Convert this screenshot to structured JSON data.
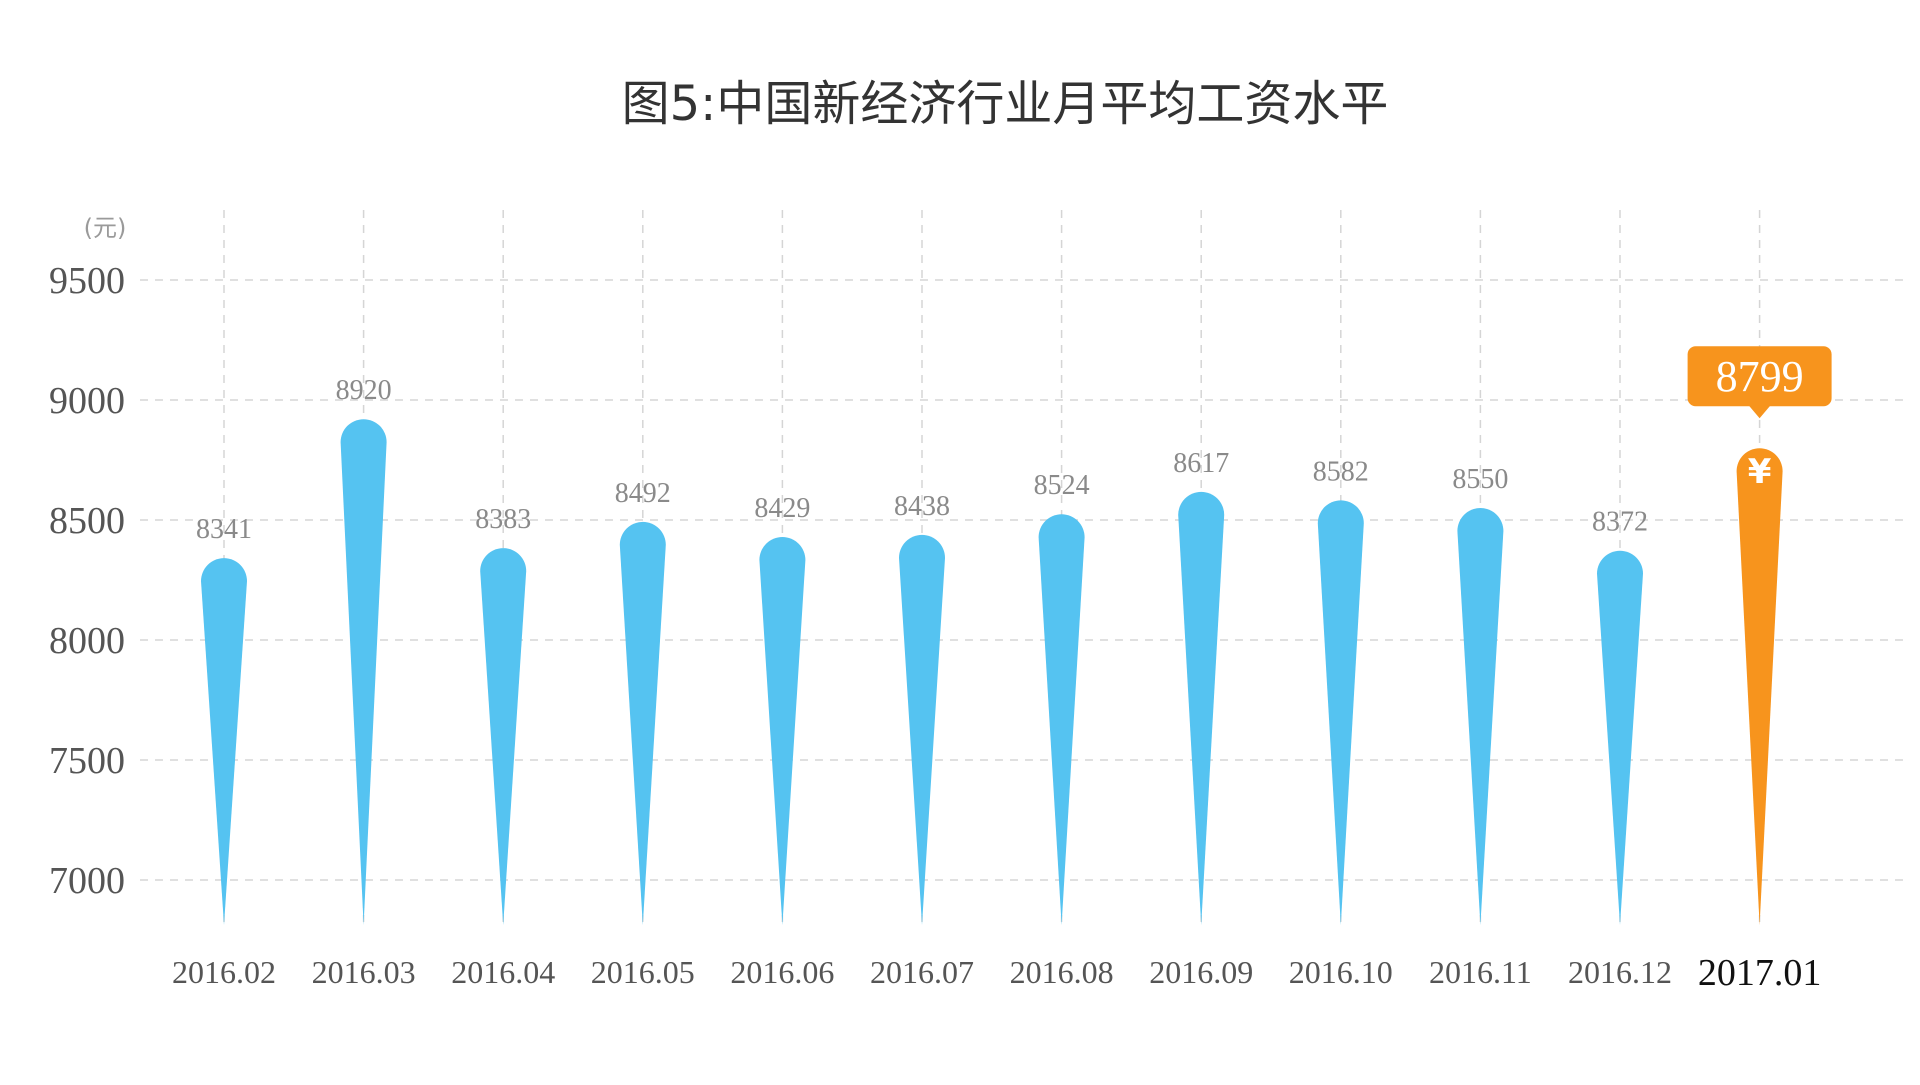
{
  "chart_data": {
    "type": "bar",
    "title": "图5:中国新经济行业月平均工资水平",
    "unit_label": "(元)",
    "categories": [
      "2016.02",
      "2016.03",
      "2016.04",
      "2016.05",
      "2016.06",
      "2016.07",
      "2016.08",
      "2016.09",
      "2016.10",
      "2016.11",
      "2016.12",
      "2017.01"
    ],
    "values": [
      8341,
      8920,
      8383,
      8492,
      8429,
      8438,
      8524,
      8617,
      8582,
      8550,
      8372,
      8799
    ],
    "yticks": [
      7000,
      7500,
      8000,
      8500,
      9000,
      9500
    ],
    "ylim": [
      6820,
      9500
    ],
    "grid": true,
    "highlight_index": 11,
    "highlight_symbol": "¥",
    "colors": {
      "bar": "#55C3F1",
      "highlight": "#F7941D",
      "grid": "#D5D5D5"
    }
  }
}
